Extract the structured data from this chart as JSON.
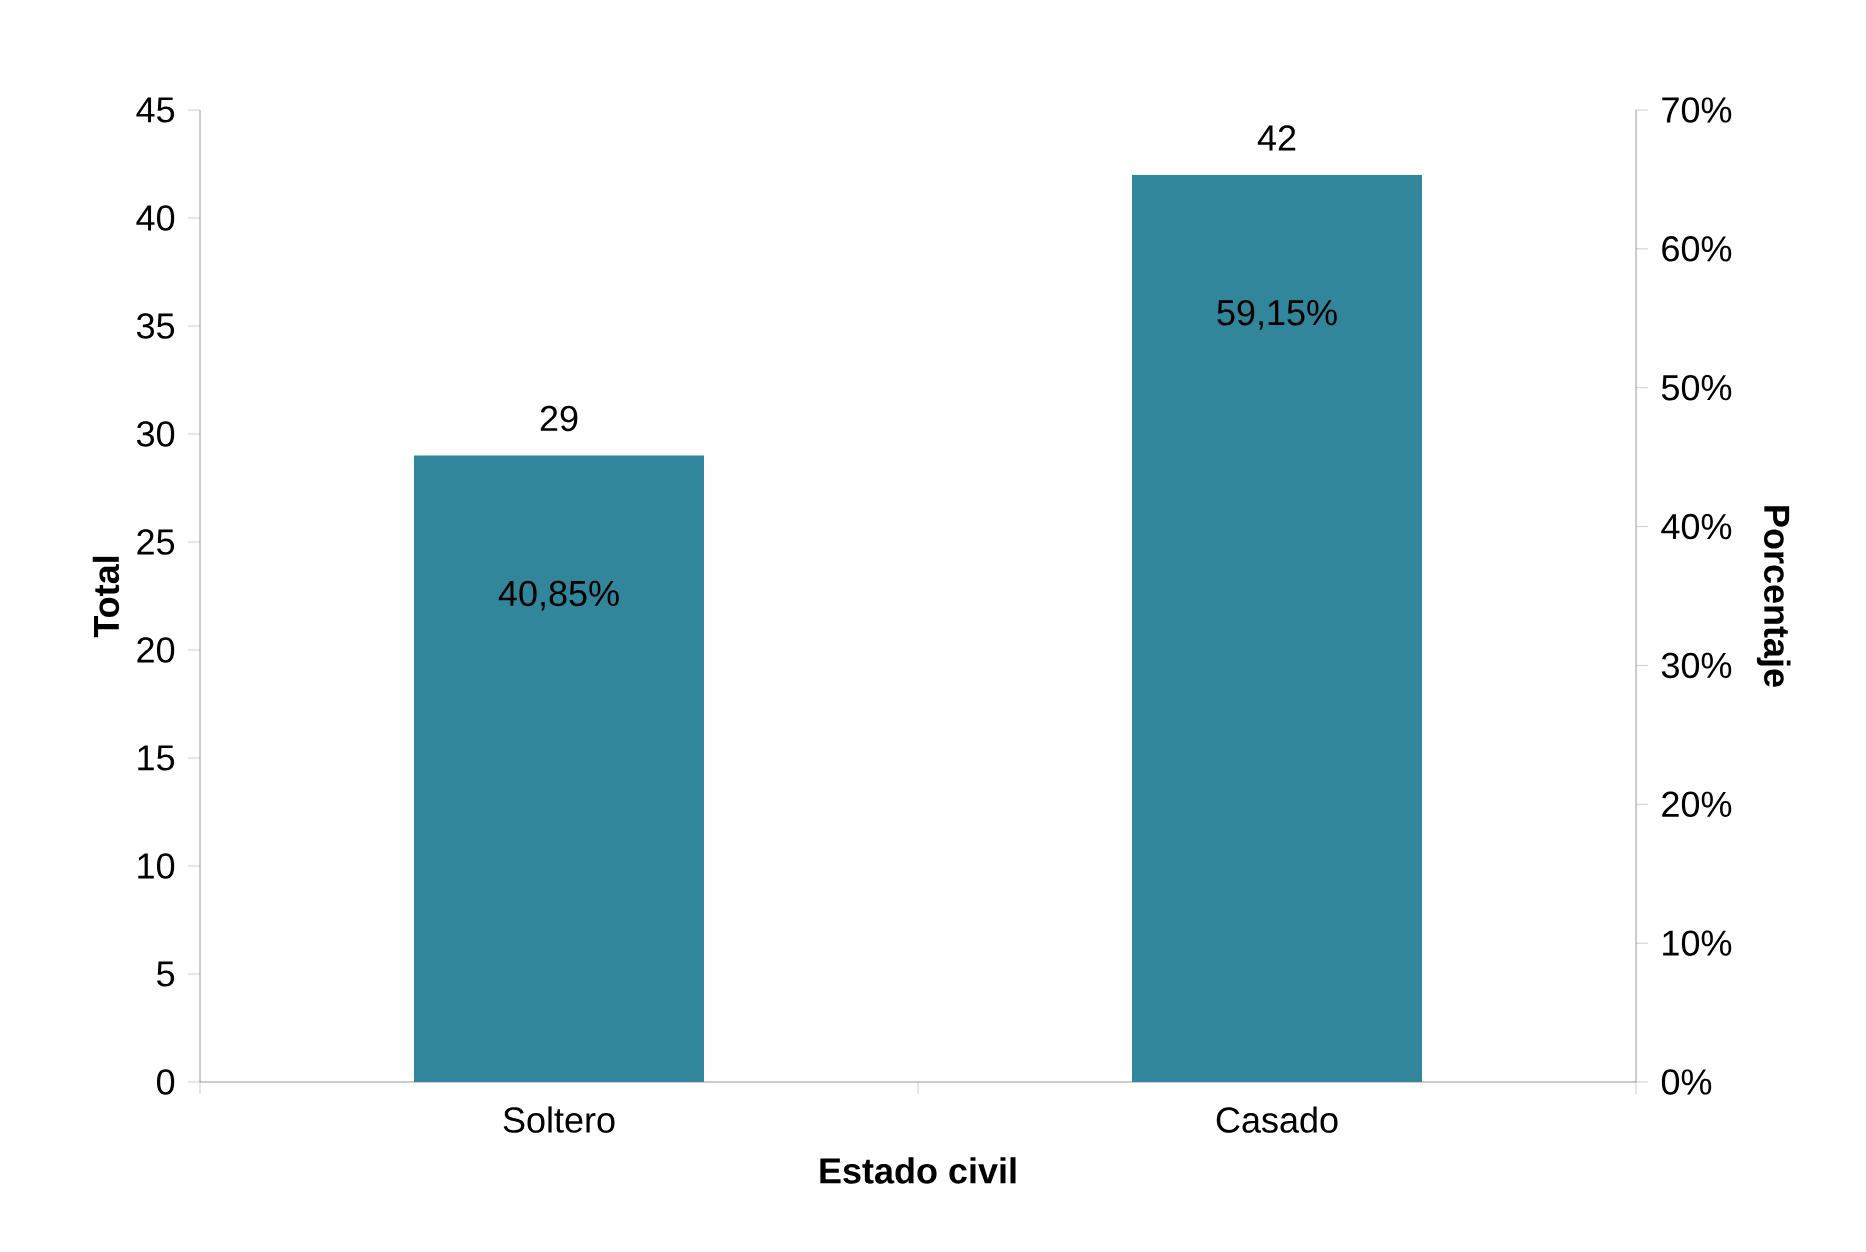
{
  "chart_data": {
    "type": "bar",
    "xlabel": "Estado civil",
    "ylabel": "Total",
    "y2label": "Porcentaje",
    "categories": [
      "Soltero",
      "Casado"
    ],
    "series": [
      {
        "color": "#31869b",
        "values": [
          29,
          42
        ]
      }
    ],
    "data_labels": true,
    "ylim": [
      0,
      45
    ],
    "yticks": [
      0,
      5,
      10,
      15,
      20,
      25,
      30,
      35,
      40,
      45
    ],
    "y2lim": [
      0,
      70
    ],
    "y2ticks": [
      {
        "value": 0,
        "label": "0%"
      },
      {
        "value": 10,
        "label": "10%"
      },
      {
        "value": 20,
        "label": "20%"
      },
      {
        "value": 30,
        "label": "30%"
      },
      {
        "value": 40,
        "label": "40%"
      },
      {
        "value": 50,
        "label": "50%"
      },
      {
        "value": 60,
        "label": "60%"
      },
      {
        "value": 70,
        "label": "70%"
      }
    ],
    "annotations": [
      "40,85%",
      "59,15%"
    ],
    "grid": false
  }
}
